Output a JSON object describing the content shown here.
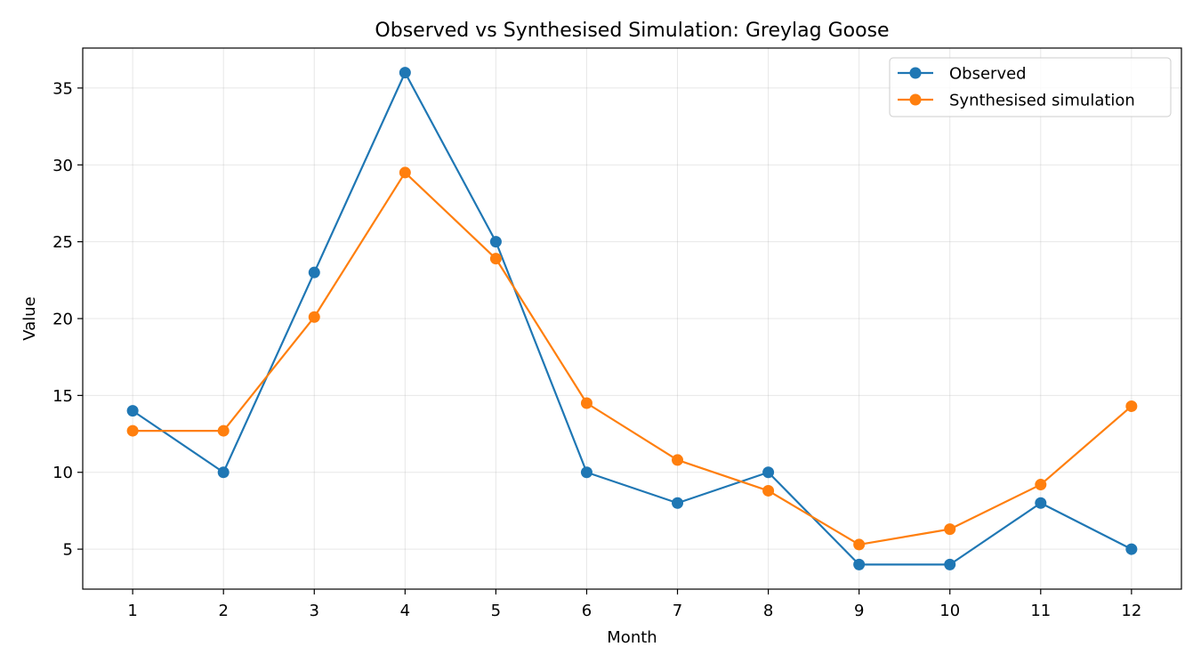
{
  "chart_data": {
    "type": "line",
    "title": "Observed vs Synthesised Simulation: Greylag Goose",
    "xlabel": "Month",
    "ylabel": "Value",
    "x": [
      1,
      2,
      3,
      4,
      5,
      6,
      7,
      8,
      9,
      10,
      11,
      12
    ],
    "x_tick_labels": [
      "1",
      "2",
      "3",
      "4",
      "5",
      "6",
      "7",
      "8",
      "9",
      "10",
      "11",
      "12"
    ],
    "xlim": [
      0.45,
      12.55
    ],
    "ylim": [
      2.4,
      37.6
    ],
    "y_ticks": [
      5,
      10,
      15,
      20,
      25,
      30,
      35
    ],
    "grid": true,
    "legend_position": "top-right",
    "series": [
      {
        "name": "Observed",
        "color": "#1f77b4",
        "marker": "circle",
        "values": [
          14,
          10,
          23,
          36,
          25,
          10,
          8,
          10,
          4,
          4,
          8,
          5
        ]
      },
      {
        "name": "Synthesised simulation",
        "color": "#ff7f0e",
        "marker": "circle",
        "values": [
          12.7,
          12.7,
          20.1,
          29.5,
          23.9,
          14.5,
          10.8,
          8.8,
          5.3,
          6.3,
          9.2,
          14.3
        ]
      }
    ]
  }
}
